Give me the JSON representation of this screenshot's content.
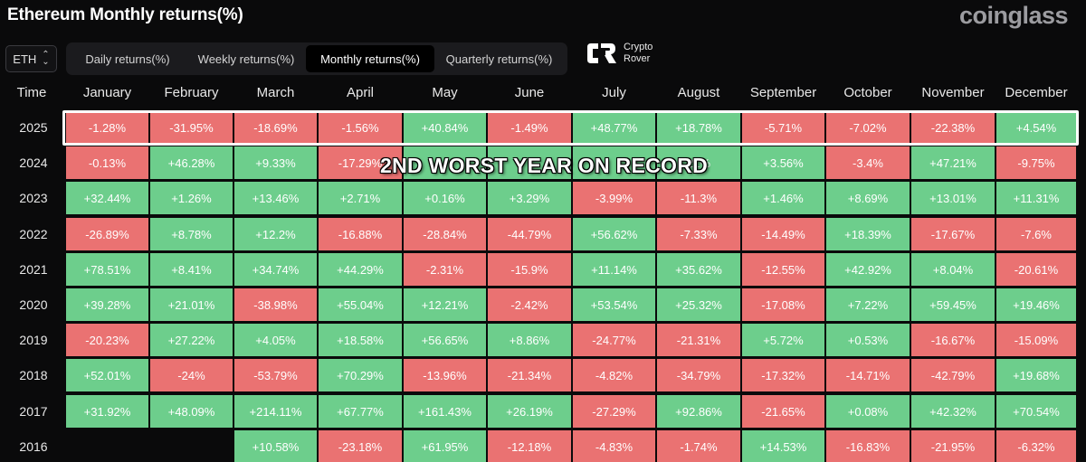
{
  "title": "Ethereum Monthly returns(%)",
  "brand": "coinglass",
  "asset_select": {
    "value": "ETH"
  },
  "tabs": [
    {
      "label": "Daily returns(%)",
      "active": false
    },
    {
      "label": "Weekly returns(%)",
      "active": false
    },
    {
      "label": "Monthly returns(%)",
      "active": true
    },
    {
      "label": "Quarterly returns(%)",
      "active": false
    }
  ],
  "overlay_logo": {
    "line1": "Crypto",
    "line2": "Rover"
  },
  "banner": "2ND WORST YEAR ON RECORD",
  "colors": {
    "positive": "#6dce8c",
    "negative": "#ea7272",
    "background": "#0a0a0b"
  },
  "table": {
    "header": [
      "Time",
      "January",
      "February",
      "March",
      "April",
      "May",
      "June",
      "July",
      "August",
      "September",
      "October",
      "November",
      "December"
    ],
    "rows": [
      {
        "year": "2025",
        "values": [
          "-1.28%",
          "-31.95%",
          "-18.69%",
          "-1.56%",
          "+40.84%",
          "-1.49%",
          "+48.77%",
          "+18.78%",
          "-5.71%",
          "-7.02%",
          "-22.38%",
          "+4.54%"
        ]
      },
      {
        "year": "2024",
        "values": [
          "-0.13%",
          "+46.28%",
          "+9.33%",
          "-17.29%",
          "",
          "",
          "",
          "21%",
          "+3.56%",
          "-3.4%",
          "+47.21%",
          "-9.75%"
        ]
      },
      {
        "year": "2023",
        "values": [
          "+32.44%",
          "+1.26%",
          "+13.46%",
          "+2.71%",
          "+0.16%",
          "+3.29%",
          "-3.99%",
          "-11.3%",
          "+1.46%",
          "+8.69%",
          "+13.01%",
          "+11.31%"
        ]
      },
      {
        "year": "2022",
        "values": [
          "-26.89%",
          "+8.78%",
          "+12.2%",
          "-16.88%",
          "-28.84%",
          "-44.79%",
          "+56.62%",
          "-7.33%",
          "-14.49%",
          "+18.39%",
          "-17.67%",
          "-7.6%"
        ]
      },
      {
        "year": "2021",
        "values": [
          "+78.51%",
          "+8.41%",
          "+34.74%",
          "+44.29%",
          "-2.31%",
          "-15.9%",
          "+11.14%",
          "+35.62%",
          "-12.55%",
          "+42.92%",
          "+8.04%",
          "-20.61%"
        ]
      },
      {
        "year": "2020",
        "values": [
          "+39.28%",
          "+21.01%",
          "-38.98%",
          "+55.04%",
          "+12.21%",
          "-2.42%",
          "+53.54%",
          "+25.32%",
          "-17.08%",
          "+7.22%",
          "+59.45%",
          "+19.46%"
        ]
      },
      {
        "year": "2019",
        "values": [
          "-20.23%",
          "+27.22%",
          "+4.05%",
          "+18.58%",
          "+56.65%",
          "+8.86%",
          "-24.77%",
          "-21.31%",
          "+5.72%",
          "+0.53%",
          "-16.67%",
          "-15.09%"
        ]
      },
      {
        "year": "2018",
        "values": [
          "+52.01%",
          "-24%",
          "-53.79%",
          "+70.29%",
          "-13.96%",
          "-21.34%",
          "-4.82%",
          "-34.79%",
          "-17.32%",
          "-14.71%",
          "-42.79%",
          "+19.68%"
        ]
      },
      {
        "year": "2017",
        "values": [
          "+31.92%",
          "+48.09%",
          "+214.11%",
          "+67.77%",
          "+161.43%",
          "+26.19%",
          "-27.29%",
          "+92.86%",
          "-21.65%",
          "+0.08%",
          "+42.32%",
          "+70.54%"
        ]
      },
      {
        "year": "2016",
        "values": [
          "",
          "",
          "+10.58%",
          "-23.18%",
          "+61.95%",
          "-12.18%",
          "-4.83%",
          "-1.74%",
          "+14.53%",
          "-16.83%",
          "-21.95%",
          "-6.32%"
        ]
      }
    ],
    "row_2024_signs": [
      "-",
      "+",
      "+",
      "-",
      "+",
      "+",
      "+",
      "+",
      "+",
      "-",
      "+",
      "-"
    ]
  }
}
